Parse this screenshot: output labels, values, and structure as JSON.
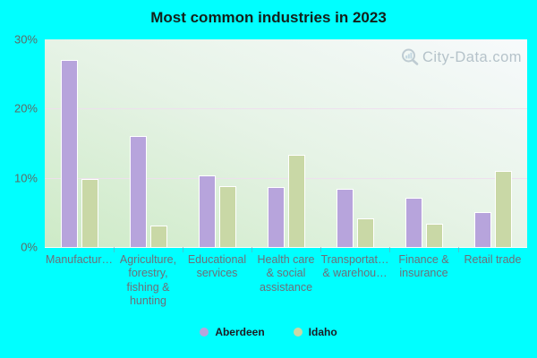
{
  "watermark": {
    "text": "City-Data.com"
  },
  "colors": {
    "background": "#00ffff",
    "aberdeen_bar": "#b7a4dc",
    "idaho_bar": "#c9d8a6",
    "bar_border": "#ffffff",
    "grid_line": "#eedeee",
    "axis_text": "#6e6e78"
  },
  "chart_data": {
    "type": "bar",
    "title": "Most common industries in 2023",
    "categories": [
      "Manufactur…",
      "Agriculture,\nforestry,\nfishing &\nhunting",
      "Educational\nservices",
      "Health care\n& social\nassistance",
      "Transportat…\n& warehou…",
      "Finance &\ninsurance",
      "Retail trade"
    ],
    "series": [
      {
        "name": "Aberdeen",
        "color": "#b7a4dc",
        "values": [
          27.0,
          16.0,
          10.3,
          8.7,
          8.4,
          7.1,
          5.1
        ]
      },
      {
        "name": "Idaho",
        "color": "#c9d8a6",
        "values": [
          9.8,
          3.1,
          8.8,
          13.3,
          4.1,
          3.4,
          11.0
        ]
      }
    ],
    "xlabel": "",
    "ylabel": "",
    "ylim": [
      0,
      30
    ],
    "yticks": [
      "30%",
      "20%",
      "10%",
      "0%"
    ],
    "grid": "horizontal",
    "legend_position": "bottom"
  }
}
